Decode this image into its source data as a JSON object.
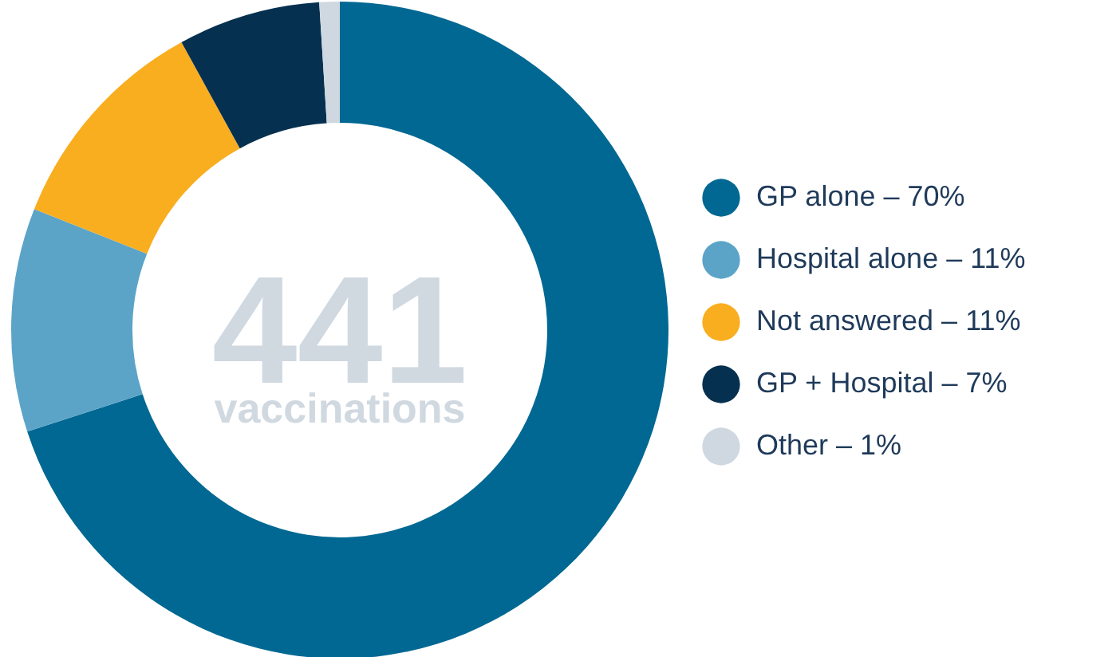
{
  "chart_data": {
    "type": "donut",
    "categories": [
      "GP alone – 70%",
      "Hospital alone – 11%",
      "Not answered – 11%",
      "GP + Hospital – 7%",
      "Other – 1%"
    ],
    "values": [
      70,
      11,
      11,
      7,
      1
    ],
    "colors": [
      "#006892",
      "#5ba4c8",
      "#f9ae1f",
      "#06304f",
      "#cfd8e0"
    ],
    "legend": "right",
    "annotations": [
      "441",
      "vaccinations"
    ]
  }
}
